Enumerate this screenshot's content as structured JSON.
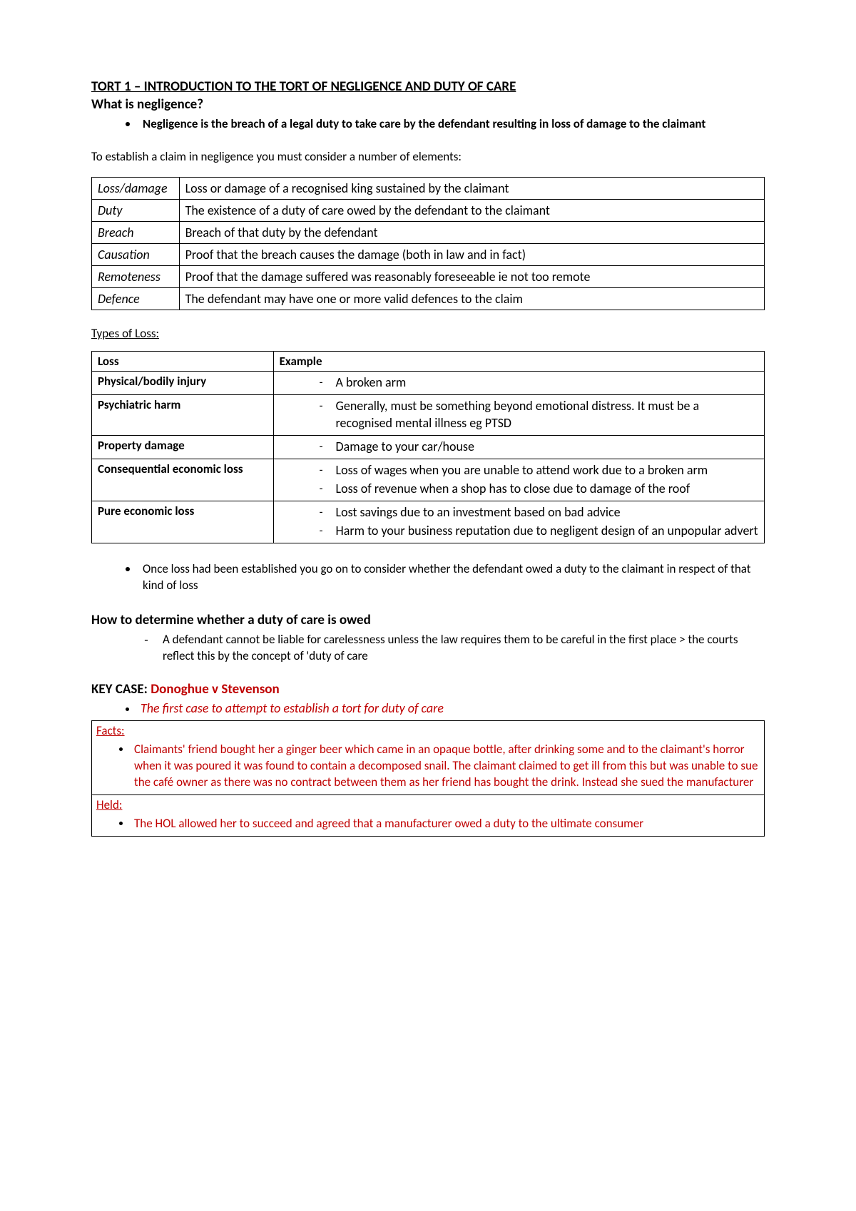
{
  "title": "TORT 1 – INTRODUCTION TO THE TORT OF NEGLIGENCE AND DUTY OF CARE",
  "q_heading": "What is negligence?",
  "definition": "Negligence is the breach of a legal duty to take care by the defendant resulting in loss of damage to the claimant",
  "intro_para": "To establish a claim in negligence you must consider a number of elements:",
  "elements": [
    {
      "term": "Loss/damage",
      "desc": "Loss or damage of a recognised king sustained by the claimant"
    },
    {
      "term": "Duty",
      "desc": "The existence of a duty of care owed by the defendant to the claimant"
    },
    {
      "term": "Breach",
      "desc": "Breach of that duty by the defendant"
    },
    {
      "term": "Causation",
      "desc": "Proof that the breach causes the damage (both in law and in fact)"
    },
    {
      "term": "Remoteness",
      "desc": "Proof that the damage suffered was reasonably foreseeable ie not too remote"
    },
    {
      "term": "Defence",
      "desc": "The defendant may have one or more valid defences to the claim"
    }
  ],
  "types_label": "Types of Loss:",
  "loss_headers": [
    "Loss",
    "Example"
  ],
  "loss_rows": [
    {
      "loss": "Physical/bodily injury",
      "examples": [
        "A broken arm"
      ]
    },
    {
      "loss": "Psychiatric harm",
      "examples": [
        "Generally, must be something beyond emotional distress. It must be a recognised mental illness eg PTSD"
      ]
    },
    {
      "loss": "Property damage",
      "examples": [
        "Damage to your car/house"
      ]
    },
    {
      "loss": "Consequential economic loss",
      "examples": [
        "Loss of wages when you are unable to attend work due to a broken arm",
        "Loss of revenue when a shop has to close due to damage of the roof"
      ]
    },
    {
      "loss": "Pure economic loss",
      "examples": [
        "Lost savings due to an investment based on bad advice",
        "Harm to your business reputation due to negligent design of an unpopular advert"
      ]
    }
  ],
  "after_loss_bullet": "Once loss had been established you go on to consider whether the defendant owed a duty to the claimant in respect of that kind of loss",
  "how_heading": "How to determine whether a duty of care is owed",
  "how_dash": "A defendant cannot be liable for carelessness unless the law requires them to be careful in the first place > the courts reflect this by the concept of 'duty of care",
  "key_case_prefix": "KEY CASE: ",
  "key_case_name": "Donoghue v Stevenson",
  "key_case_bullet": "The first case to attempt to establish a tort for duty of care",
  "case_sections": [
    {
      "label": "Facts:",
      "text": "Claimants' friend bought her a ginger beer which came in an opaque bottle, after drinking some and to the claimant's horror when it was poured it was found to contain a decomposed snail. The claimant claimed to get ill from this but was unable to sue the café owner as there was no contract between them as her friend has bought the drink. Instead she sued the manufacturer"
    },
    {
      "label": "Held:",
      "text": "The HOL allowed her to succeed and agreed that a manufacturer owed a duty to the ultimate consumer"
    }
  ],
  "colors": {
    "red": "#bf0000",
    "text": "#000000",
    "background": "#ffffff",
    "border": "#000000"
  }
}
